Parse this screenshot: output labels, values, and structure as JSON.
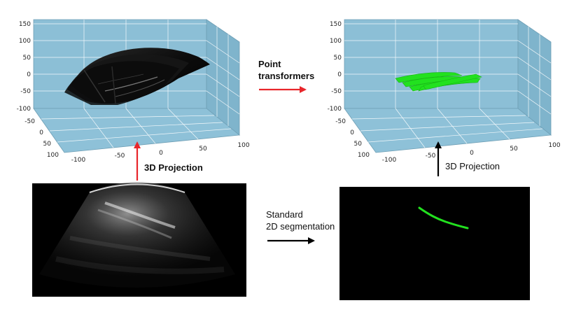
{
  "labels": {
    "point_transformers_line1": "Point",
    "point_transformers_line2": "transformers",
    "projection_left": "3D Projection",
    "projection_right": "3D Projection",
    "standard_line1": "Standard",
    "standard_line2": "2D segmentation"
  },
  "axes": {
    "z_ticks": [
      "150",
      "100",
      "50",
      "0",
      "-50",
      "-100"
    ],
    "y_ticks": [
      "-50",
      "0",
      "50",
      "100"
    ],
    "x_ticks": [
      "-100",
      "-50",
      "0",
      "50",
      "100"
    ]
  },
  "colors": {
    "pane": "#8cbfd6",
    "pane_dark": "#7aaec6",
    "grid": "#ffffff",
    "arrow_red": "#e8262b",
    "arrow_black": "#000000",
    "segmentation": "#22e11f",
    "volume": "#111111"
  }
}
